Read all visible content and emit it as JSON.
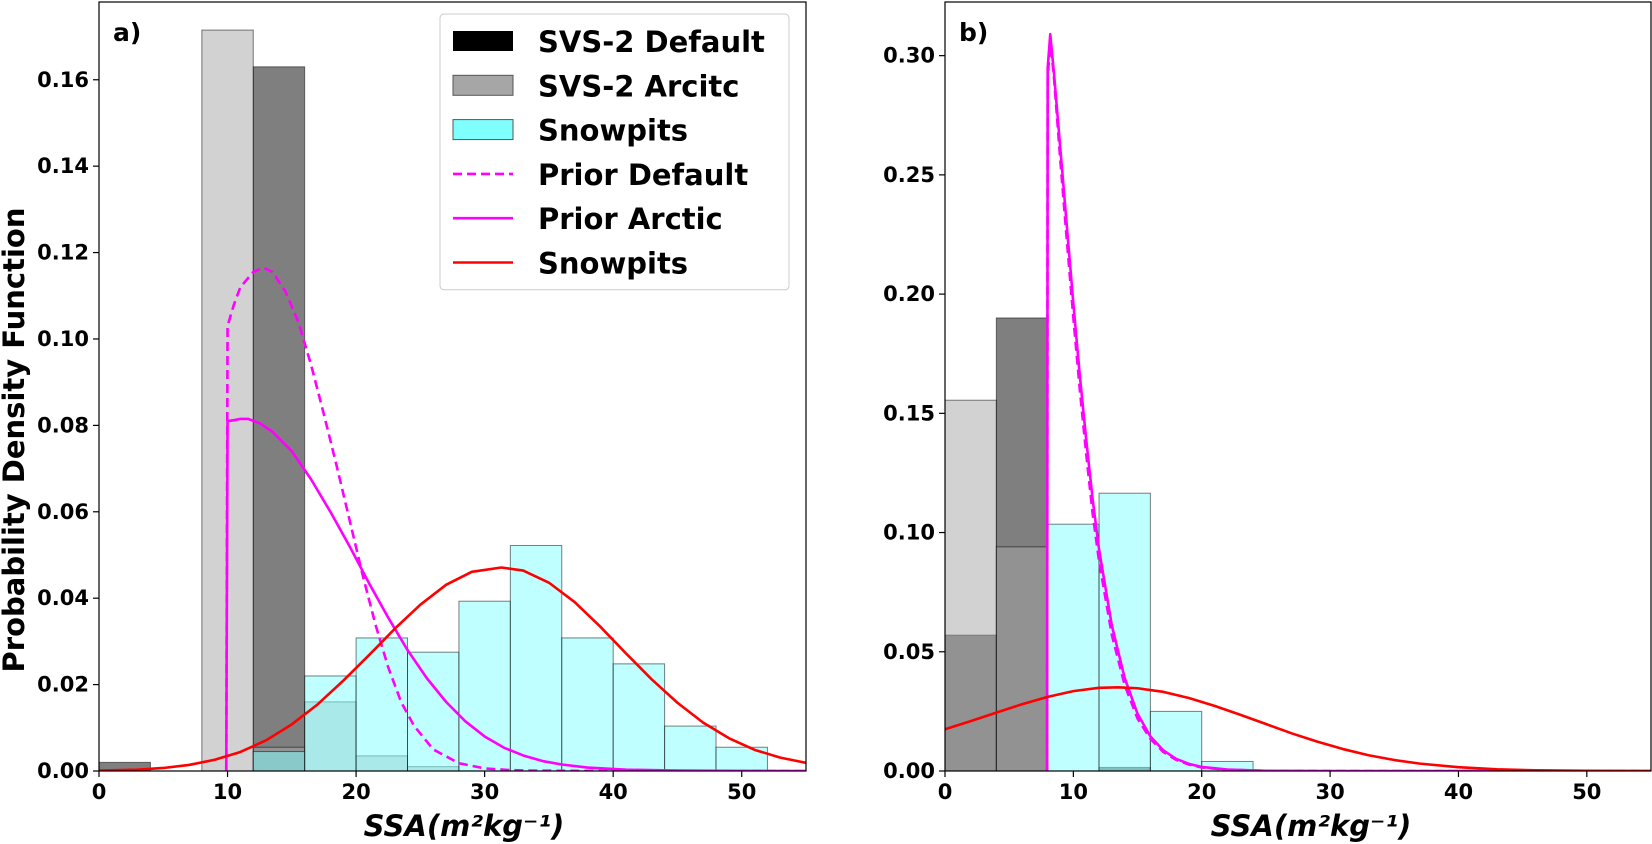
{
  "chart_data": [
    {
      "type": "bar",
      "panel_label": "a)",
      "xlabel": "SSA(m²kg⁻¹)",
      "ylabel": "Probability Density Function",
      "xlim": [
        0,
        55
      ],
      "ylim": [
        0,
        0.178
      ],
      "xticks": [
        0,
        10,
        20,
        30,
        40,
        50
      ],
      "yticks": [
        0.0,
        0.02,
        0.04,
        0.06,
        0.08,
        0.1,
        0.12,
        0.14,
        0.16
      ],
      "ytick_decimals": 2,
      "grid": false,
      "legend": {
        "placement": "top-right",
        "entries": [
          {
            "label": "SVS-2 Default",
            "kind": "patch",
            "color": "#000000"
          },
          {
            "label": "SVS-2 Arcitc",
            "kind": "patch",
            "color": "#a6a6a6"
          },
          {
            "label": "Snowpits",
            "kind": "patch",
            "color": "#80ffff"
          },
          {
            "label": "Prior Default",
            "kind": "line",
            "color": "#ff00ff",
            "dashed": true
          },
          {
            "label": "Prior Arctic",
            "kind": "line",
            "color": "#ff00ff",
            "dashed": false
          },
          {
            "label": "Snowpits",
            "kind": "line",
            "color": "#ff0000",
            "dashed": false
          }
        ]
      },
      "histograms": [
        {
          "name": "SVS-2 Default",
          "color": "#000000",
          "bin_edges": [
            0,
            4,
            8,
            12,
            16,
            20,
            24,
            28
          ],
          "densities": [
            0.002,
            0,
            0,
            0.163,
            0,
            0,
            0
          ]
        },
        {
          "name": "SVS-2 Arcitc",
          "color": "#a6a6a6",
          "bin_edges": [
            0,
            4,
            8,
            12,
            16,
            20,
            24,
            28
          ],
          "densities": [
            0,
            0,
            0.1715,
            0.0055,
            0.016,
            0.0035,
            0.001
          ]
        },
        {
          "name": "Snowpits",
          "color": "#80ffff",
          "bin_edges": [
            12,
            16,
            20,
            24,
            28,
            32,
            36,
            40,
            44,
            48,
            52
          ],
          "densities": [
            0.0045,
            0.022,
            0.0308,
            0.0275,
            0.0393,
            0.0522,
            0.0308,
            0.0248,
            0.0104,
            0.0055
          ]
        }
      ],
      "curves": [
        {
          "name": "Prior Default",
          "color": "#ff00ff",
          "dashed": true,
          "x": [
            9.9,
            10.0,
            10.5,
            11.0,
            12.0,
            12.8,
            13.5,
            14.5,
            15.5,
            16.5,
            17.5,
            18.5,
            19.5,
            20.5,
            21.5,
            22.5,
            23.5,
            24.5,
            26,
            28,
            30,
            32,
            34,
            38,
            45,
            55
          ],
          "y": [
            0,
            0.103,
            0.108,
            0.112,
            0.1155,
            0.1165,
            0.1155,
            0.111,
            0.104,
            0.094,
            0.0825,
            0.0705,
            0.058,
            0.0455,
            0.034,
            0.024,
            0.016,
            0.0105,
            0.005,
            0.0018,
            0.0006,
            0.0002,
            8e-05,
            2e-05,
            0,
            0
          ]
        },
        {
          "name": "Prior Arctic",
          "color": "#ff00ff",
          "dashed": false,
          "x": [
            9.9,
            10.0,
            10.5,
            11.0,
            11.6,
            12.5,
            13.5,
            15,
            16.5,
            18,
            19.5,
            21,
            22.5,
            24,
            25.5,
            27,
            28.5,
            30,
            31.5,
            33,
            34.5,
            36,
            38,
            41,
            45,
            50,
            55
          ],
          "y": [
            0,
            0.081,
            0.0812,
            0.0815,
            0.0815,
            0.0805,
            0.0785,
            0.074,
            0.0675,
            0.06,
            0.052,
            0.0435,
            0.0355,
            0.028,
            0.0215,
            0.016,
            0.0115,
            0.008,
            0.0054,
            0.0036,
            0.0023,
            0.0015,
            0.0008,
            0.0003,
            0.0001,
            2e-05,
            0
          ]
        },
        {
          "name": "Snowpits",
          "color": "#ff0000",
          "dashed": false,
          "x": [
            0,
            3,
            5,
            7,
            9,
            11,
            13,
            15,
            17,
            19,
            21,
            23,
            25,
            27,
            29,
            31.3,
            33,
            35,
            37,
            39,
            41,
            43,
            45,
            47,
            49,
            51,
            53,
            55
          ],
          "y": [
            0.0001,
            0.0003,
            0.0007,
            0.0014,
            0.0026,
            0.0044,
            0.0071,
            0.0108,
            0.0154,
            0.0209,
            0.0268,
            0.0329,
            0.0385,
            0.0431,
            0.0461,
            0.0471,
            0.0464,
            0.0436,
            0.0391,
            0.0334,
            0.0272,
            0.0212,
            0.0158,
            0.0112,
            0.0076,
            0.0049,
            0.0031,
            0.0019
          ]
        }
      ]
    },
    {
      "type": "bar",
      "panel_label": "b)",
      "xlabel": "SSA(m²kg⁻¹)",
      "xlim": [
        0,
        55
      ],
      "ylim": [
        0,
        0.3225
      ],
      "xticks": [
        0,
        10,
        20,
        30,
        40,
        50
      ],
      "yticks": [
        0.0,
        0.05,
        0.1,
        0.15,
        0.2,
        0.25,
        0.3
      ],
      "ytick_decimals": 2,
      "grid": false,
      "histograms": [
        {
          "name": "SVS-2 Default",
          "color": "#000000",
          "bin_edges": [
            0,
            4,
            8,
            12,
            16
          ],
          "densities": [
            0.057,
            0.19,
            0,
            0.0015
          ]
        },
        {
          "name": "SVS-2 Arcitc",
          "color": "#a6a6a6",
          "bin_edges": [
            0,
            4,
            8,
            12,
            16
          ],
          "densities": [
            0.1555,
            0.094,
            0,
            0
          ]
        },
        {
          "name": "Snowpits",
          "color": "#80ffff",
          "bin_edges": [
            8,
            12,
            16,
            20,
            24
          ],
          "densities": [
            0.1035,
            0.1165,
            0.025,
            0.004
          ]
        }
      ],
      "curves": [
        {
          "name": "Prior Default",
          "color": "#ff00ff",
          "dashed": true,
          "x": [
            7.95,
            8.0,
            8.2,
            8.5,
            9.0,
            9.5,
            10.0,
            10.5,
            11.0,
            11.5,
            12.0,
            13.0,
            14.0,
            15.0,
            16.0,
            17.0,
            18.0,
            19.0,
            20.0,
            22.0,
            25.0,
            30.0,
            55.0
          ],
          "y": [
            0,
            0.29,
            0.307,
            0.29,
            0.255,
            0.222,
            0.19,
            0.16,
            0.133,
            0.108,
            0.088,
            0.057,
            0.036,
            0.022,
            0.0135,
            0.008,
            0.0047,
            0.0027,
            0.0015,
            0.0005,
            0.0001,
            0,
            0
          ]
        },
        {
          "name": "Prior Arctic",
          "color": "#ff00ff",
          "dashed": false,
          "x": [
            7.95,
            8.0,
            8.2,
            8.5,
            9.0,
            9.5,
            10.0,
            10.5,
            11.0,
            11.5,
            12.0,
            13.0,
            14.0,
            15.0,
            16.0,
            17.0,
            18.0,
            19.0,
            20.0,
            22.0,
            25.0,
            30.0,
            55.0
          ],
          "y": [
            0,
            0.295,
            0.309,
            0.292,
            0.26,
            0.228,
            0.196,
            0.166,
            0.139,
            0.114,
            0.093,
            0.061,
            0.039,
            0.024,
            0.0145,
            0.0087,
            0.0051,
            0.003,
            0.0017,
            0.0006,
            0.0001,
            0,
            0
          ]
        },
        {
          "name": "Snowpits",
          "color": "#ff0000",
          "dashed": false,
          "x": [
            0,
            2,
            4,
            6,
            8,
            10,
            12,
            13.5,
            15,
            17,
            19,
            21,
            23,
            25,
            27,
            29,
            31,
            33,
            35,
            37,
            40,
            43,
            46,
            50,
            55
          ],
          "y": [
            0.0175,
            0.0209,
            0.0245,
            0.028,
            0.0311,
            0.0335,
            0.0349,
            0.0351,
            0.0347,
            0.0332,
            0.0306,
            0.0273,
            0.0236,
            0.0197,
            0.0158,
            0.0123,
            0.0092,
            0.0066,
            0.0046,
            0.0031,
            0.0016,
            0.0007,
            0.0003,
            0.0001,
            0.0
          ]
        }
      ]
    }
  ]
}
